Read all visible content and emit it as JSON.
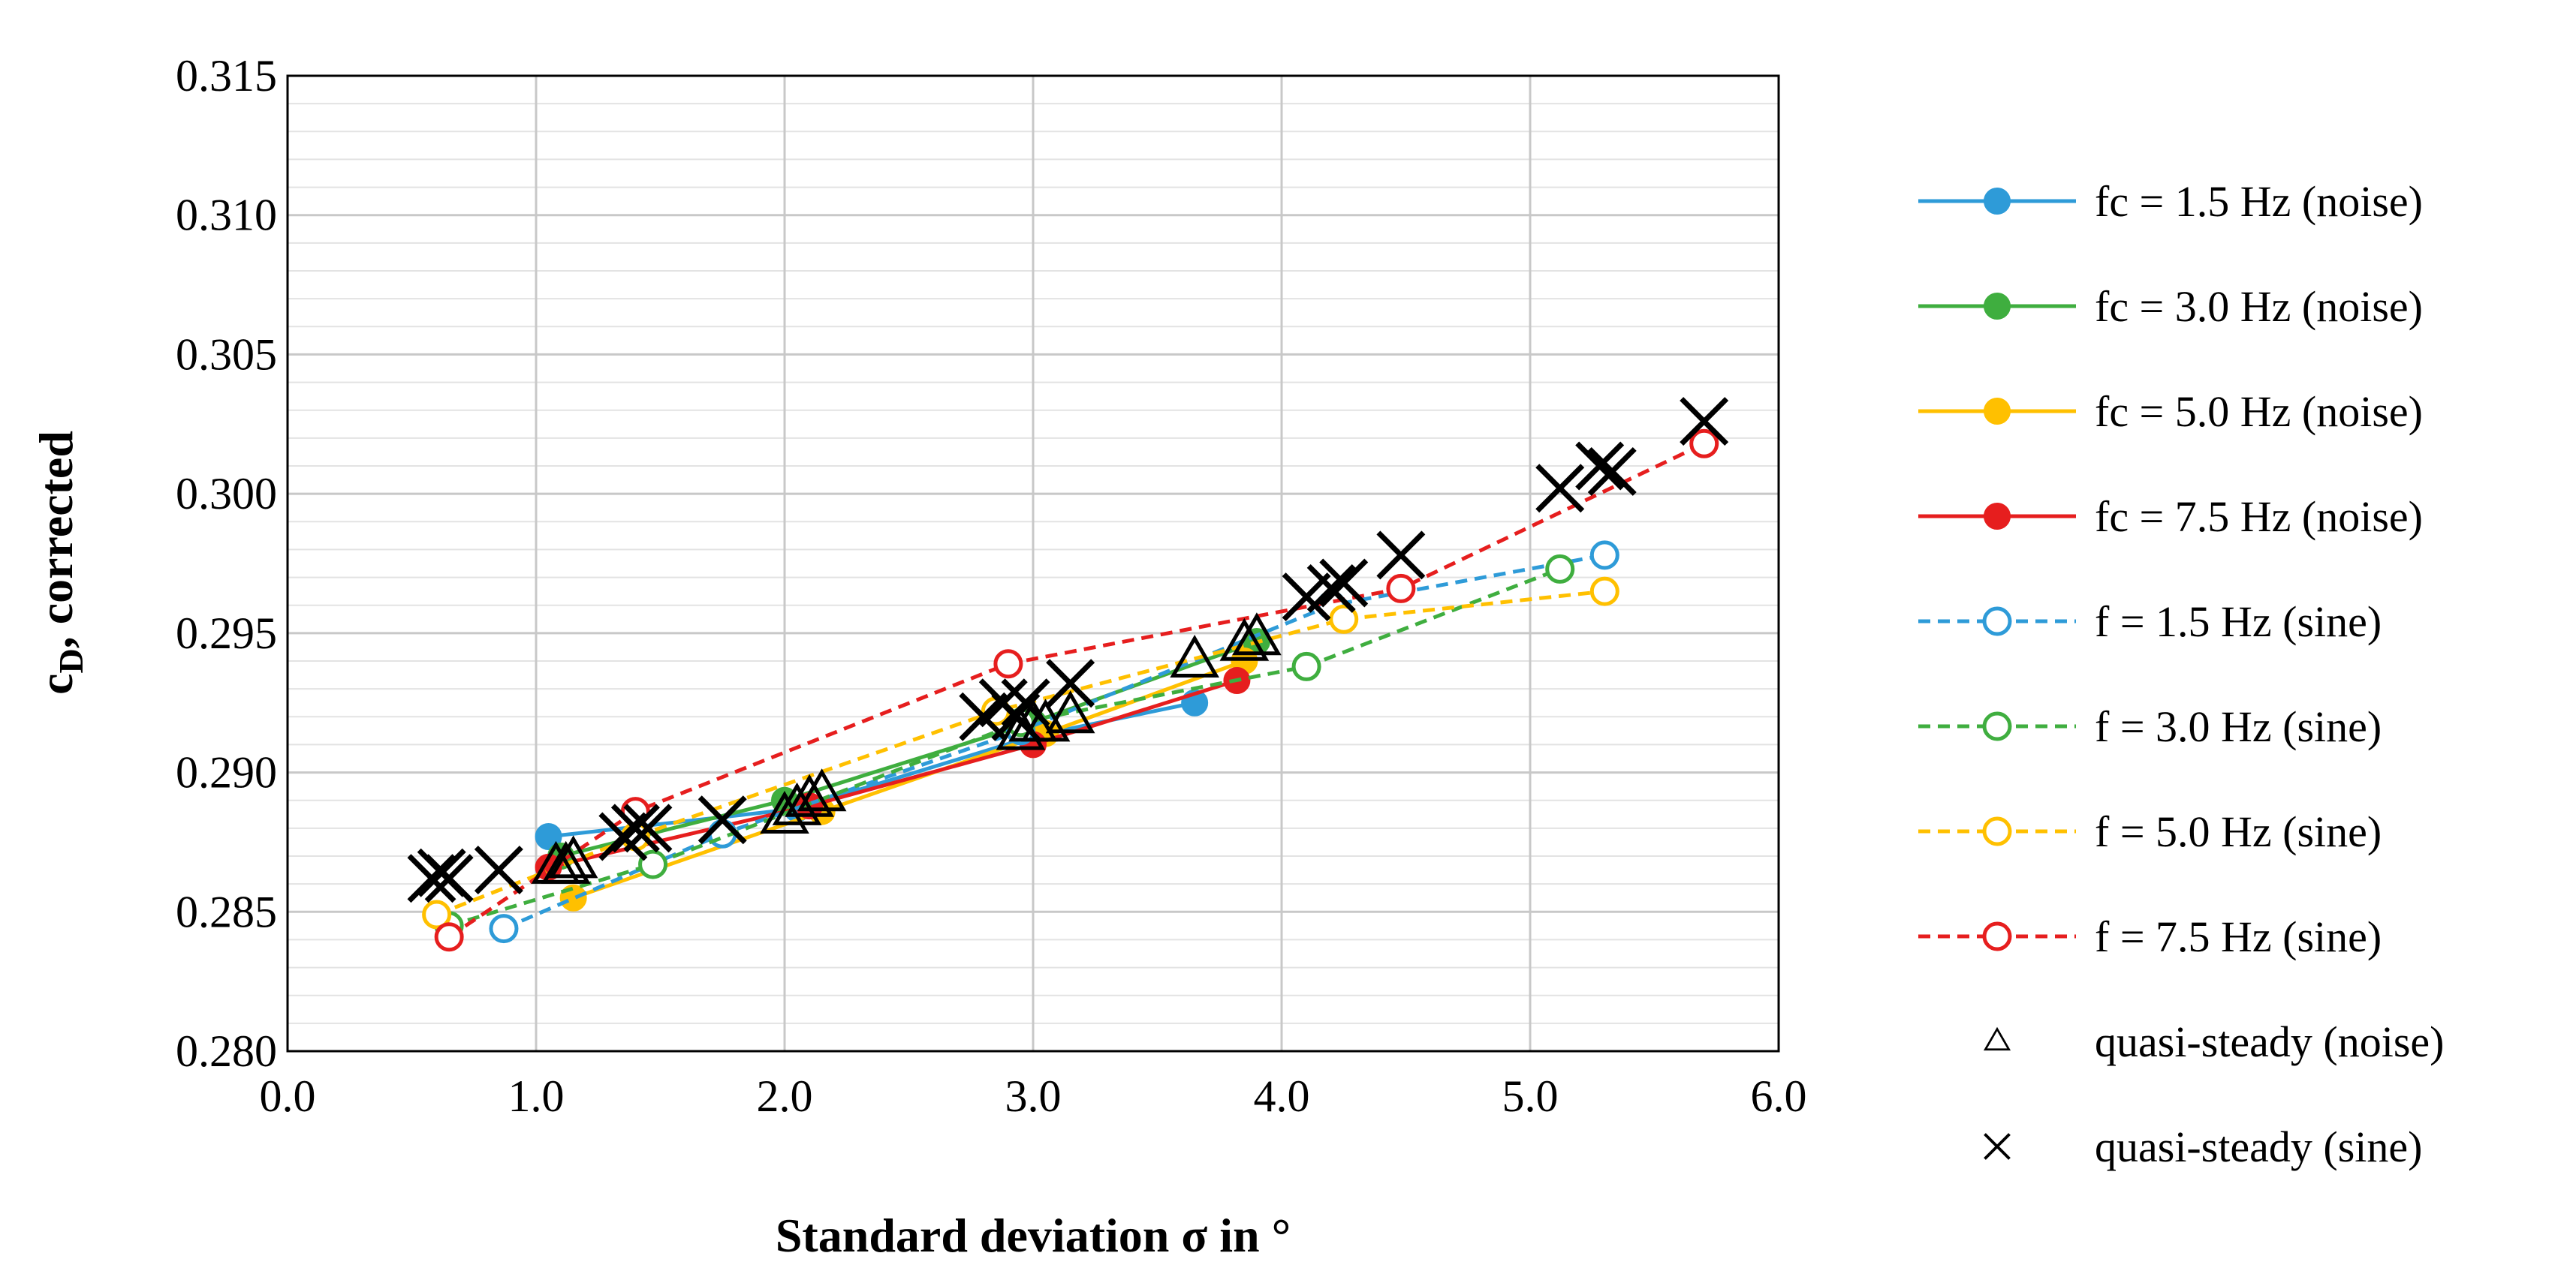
{
  "chart_data": {
    "type": "line",
    "xlabel": "Standard deviation σ in °",
    "ylabel": "c_D, corrected",
    "ylabel_main": "c",
    "ylabel_sub": "D",
    "ylabel_rest": ", corrected",
    "xlim": [
      0.0,
      6.0
    ],
    "ylim": [
      0.28,
      0.315
    ],
    "x_ticks": [
      "0.0",
      "1.0",
      "2.0",
      "3.0",
      "4.0",
      "5.0",
      "6.0"
    ],
    "y_ticks": [
      "0.280",
      "0.285",
      "0.290",
      "0.295",
      "0.300",
      "0.305",
      "0.310",
      "0.315"
    ],
    "grid": true,
    "minor_grid_y": true,
    "legend_position": "right",
    "series": [
      {
        "name": "fc = 1.5 Hz (noise)",
        "color": "#2E9BD8",
        "dash": "solid",
        "marker": "filled-circle",
        "x": [
          1.05,
          2.05,
          3.0,
          3.65
        ],
        "y": [
          0.2877,
          0.2887,
          0.2913,
          0.2925
        ]
      },
      {
        "name": "fc = 3.0 Hz (noise)",
        "color": "#3FAE3F",
        "dash": "solid",
        "marker": "filled-circle",
        "x": [
          1.1,
          2.0,
          3.0,
          3.9
        ],
        "y": [
          0.287,
          0.289,
          0.2918,
          0.2947
        ]
      },
      {
        "name": "fc = 5.0 Hz (noise)",
        "color": "#FFC000",
        "dash": "solid",
        "marker": "filled-circle",
        "x": [
          1.15,
          2.15,
          3.05,
          3.85
        ],
        "y": [
          0.2855,
          0.2886,
          0.2914,
          0.294
        ]
      },
      {
        "name": "fc = 7.5 Hz (noise)",
        "color": "#E61E1E",
        "dash": "solid",
        "marker": "filled-circle",
        "x": [
          1.05,
          2.1,
          3.0,
          3.82
        ],
        "y": [
          0.2866,
          0.2888,
          0.291,
          0.2933
        ]
      },
      {
        "name": "f = 1.5 Hz (sine)",
        "color": "#2E9BD8",
        "dash": "dashed",
        "marker": "open-circle",
        "x": [
          0.87,
          1.75,
          2.95,
          4.2,
          5.3
        ],
        "y": [
          0.2844,
          0.2878,
          0.2915,
          0.296,
          0.2978
        ]
      },
      {
        "name": "f = 3.0 Hz (sine)",
        "color": "#3FAE3F",
        "dash": "dashed",
        "marker": "open-circle",
        "x": [
          0.65,
          1.47,
          2.95,
          4.1,
          5.12
        ],
        "y": [
          0.2845,
          0.2867,
          0.2918,
          0.2938,
          0.2973
        ]
      },
      {
        "name": "f = 5.0 Hz (sine)",
        "color": "#FFC000",
        "dash": "dashed",
        "marker": "open-circle",
        "x": [
          0.6,
          1.4,
          2.85,
          4.25,
          5.3
        ],
        "y": [
          0.2849,
          0.2877,
          0.2922,
          0.2955,
          0.2965
        ]
      },
      {
        "name": "f = 7.5 Hz (sine)",
        "color": "#E61E1E",
        "dash": "dashed",
        "marker": "open-circle",
        "x": [
          0.65,
          1.4,
          2.9,
          4.48,
          5.7
        ],
        "y": [
          0.2841,
          0.2886,
          0.2939,
          0.2966,
          0.3018
        ]
      },
      {
        "name": "quasi-steady (noise)",
        "color": "#000000",
        "dash": "none",
        "marker": "open-triangle",
        "x": [
          1.08,
          1.12,
          1.15,
          2.0,
          2.05,
          2.1,
          2.15,
          2.95,
          3.0,
          3.05,
          3.15,
          3.65,
          3.85,
          3.9
        ],
        "y": [
          0.2866,
          0.2866,
          0.2868,
          0.2884,
          0.2887,
          0.289,
          0.2892,
          0.2914,
          0.2917,
          0.2917,
          0.292,
          0.294,
          0.2946,
          0.2948
        ]
      },
      {
        "name": "quasi-steady (sine)",
        "color": "#000000",
        "dash": "none",
        "marker": "cross",
        "x": [
          0.58,
          0.62,
          0.65,
          0.85,
          1.35,
          1.4,
          1.45,
          1.75,
          2.8,
          2.88,
          2.93,
          2.97,
          3.15,
          4.1,
          4.2,
          4.25,
          4.48,
          5.12,
          5.28,
          5.33,
          5.7
        ],
        "y": [
          0.2862,
          0.2864,
          0.2862,
          0.2865,
          0.2877,
          0.288,
          0.288,
          0.2883,
          0.292,
          0.2925,
          0.292,
          0.2925,
          0.2932,
          0.2963,
          0.2966,
          0.2968,
          0.2978,
          0.3002,
          0.301,
          0.3008,
          0.3026
        ]
      }
    ]
  }
}
